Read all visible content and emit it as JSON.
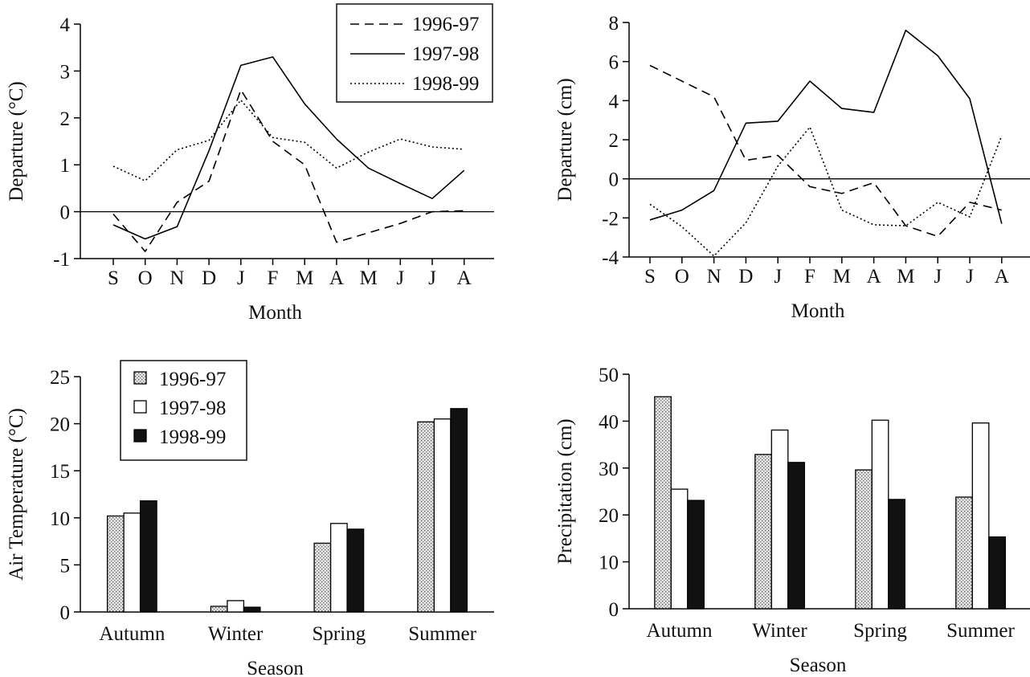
{
  "chart_data": [
    {
      "id": "temp-departure",
      "type": "line",
      "title": "",
      "xlabel": "Month",
      "ylabel": "Departure (°C)",
      "categories": [
        "S",
        "O",
        "N",
        "D",
        "J",
        "F",
        "M",
        "A",
        "M",
        "J",
        "J",
        "A"
      ],
      "ylim": [
        -1,
        4
      ],
      "yticks": [
        -1,
        0,
        1,
        2,
        3,
        4
      ],
      "reference_line": 0,
      "grid": false,
      "legend": "top-right",
      "series": [
        {
          "name": "1996-97",
          "style": "dashed",
          "values": [
            -0.05,
            -0.85,
            0.2,
            0.65,
            2.6,
            1.5,
            1.0,
            -0.65,
            -0.45,
            -0.25,
            0.0,
            0.02
          ]
        },
        {
          "name": "1997-98",
          "style": "solid",
          "values": [
            -0.28,
            -0.58,
            -0.32,
            1.3,
            3.12,
            3.3,
            2.3,
            1.55,
            0.93,
            0.6,
            0.28,
            0.88
          ]
        },
        {
          "name": "1998-99",
          "style": "dotted",
          "values": [
            0.97,
            0.66,
            1.32,
            1.52,
            2.38,
            1.58,
            1.48,
            0.93,
            1.27,
            1.55,
            1.38,
            1.33
          ]
        }
      ]
    },
    {
      "id": "precip-departure",
      "type": "line",
      "title": "",
      "xlabel": "Month",
      "ylabel": "Departure (cm)",
      "categories": [
        "S",
        "O",
        "N",
        "D",
        "J",
        "F",
        "M",
        "A",
        "M",
        "J",
        "J",
        "A"
      ],
      "ylim": [
        -4,
        8
      ],
      "yticks": [
        -4,
        -2,
        0,
        2,
        4,
        6,
        8
      ],
      "reference_line": 0,
      "grid": false,
      "legend": "none",
      "series": [
        {
          "name": "1996-97",
          "style": "dashed",
          "values": [
            5.8,
            5.0,
            4.2,
            0.95,
            1.2,
            -0.4,
            -0.75,
            -0.2,
            -2.4,
            -2.95,
            -1.2,
            -1.6
          ]
        },
        {
          "name": "1997-98",
          "style": "solid",
          "values": [
            -2.1,
            -1.6,
            -0.6,
            2.85,
            2.95,
            5.0,
            3.6,
            3.4,
            7.6,
            6.3,
            4.1,
            -2.3
          ]
        },
        {
          "name": "1998-99",
          "style": "dotted",
          "values": [
            -1.3,
            -2.45,
            -3.95,
            -2.25,
            0.65,
            2.65,
            -1.6,
            -2.35,
            -2.4,
            -1.2,
            -1.95,
            2.2
          ]
        }
      ]
    },
    {
      "id": "seasonal-temp",
      "type": "bar",
      "title": "",
      "xlabel": "Season",
      "ylabel": "Air Temperature (°C)",
      "categories": [
        "Autumn",
        "Winter",
        "Spring",
        "Summer"
      ],
      "ylim": [
        0,
        25
      ],
      "yticks": [
        0,
        5,
        10,
        15,
        20,
        25
      ],
      "grid": false,
      "legend": "top-left",
      "series": [
        {
          "name": "1996-97",
          "fill": "stipple",
          "values": [
            10.2,
            0.6,
            7.3,
            20.2
          ]
        },
        {
          "name": "1997-98",
          "fill": "white",
          "values": [
            10.5,
            1.2,
            9.4,
            20.5
          ]
        },
        {
          "name": "1998-99",
          "fill": "black",
          "values": [
            11.8,
            0.5,
            8.8,
            21.6
          ]
        }
      ]
    },
    {
      "id": "seasonal-precip",
      "type": "bar",
      "title": "",
      "xlabel": "Season",
      "ylabel": "Precipitation (cm)",
      "categories": [
        "Autumn",
        "Winter",
        "Spring",
        "Summer"
      ],
      "ylim": [
        0,
        50
      ],
      "yticks": [
        0,
        10,
        20,
        30,
        40,
        50
      ],
      "grid": false,
      "legend": "none",
      "series": [
        {
          "name": "1996-97",
          "fill": "stipple",
          "values": [
            45.2,
            32.9,
            29.6,
            23.8
          ]
        },
        {
          "name": "1997-98",
          "fill": "white",
          "values": [
            25.5,
            38.1,
            40.2,
            39.6
          ]
        },
        {
          "name": "1998-99",
          "fill": "black",
          "values": [
            23.1,
            31.2,
            23.3,
            15.3
          ]
        }
      ]
    }
  ]
}
